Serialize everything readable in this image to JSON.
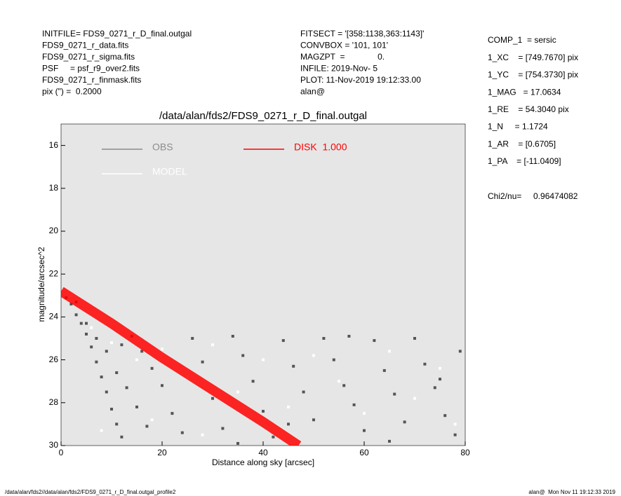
{
  "chart_data": {
    "type": "scatter",
    "title": "/data/alan/fds2/FDS9_0271_r_D_final.outgal",
    "xlabel": "Distance along sky [arcsec]",
    "ylabel": "magnitude/arcsec^2",
    "xlim": [
      0,
      80
    ],
    "ylim": [
      30,
      15
    ],
    "xticks": [
      0,
      20,
      40,
      60,
      80
    ],
    "yticks": [
      16,
      18,
      20,
      22,
      24,
      26,
      28,
      30
    ],
    "legend": "upper left",
    "background": "#e6e6e6",
    "series": [
      {
        "name": "OBS",
        "color": "#555555",
        "label_color": "#8c8c8c",
        "mode": "points",
        "x": [
          1,
          2,
          3,
          4,
          5,
          6,
          7,
          8,
          9,
          10,
          11,
          12,
          3,
          5,
          7,
          9,
          11,
          13,
          15,
          17,
          12,
          14,
          16,
          18,
          20,
          22,
          24,
          26,
          28,
          30,
          32,
          34,
          36,
          38,
          40,
          42,
          44,
          46,
          48,
          50,
          52,
          54,
          56,
          58,
          60,
          62,
          64,
          66,
          68,
          70,
          72,
          74,
          76,
          78,
          79,
          57,
          65,
          35,
          45,
          75
        ],
        "values": [
          23.1,
          23.4,
          23.9,
          24.3,
          24.8,
          25.4,
          26.1,
          26.8,
          27.5,
          28.3,
          29.0,
          29.6,
          23.3,
          24.3,
          25.0,
          25.6,
          26.6,
          27.3,
          28.2,
          29.1,
          25.3,
          24.9,
          25.6,
          26.4,
          27.2,
          28.5,
          29.4,
          25.0,
          26.1,
          27.8,
          29.2,
          24.9,
          25.8,
          27.0,
          28.4,
          29.6,
          25.1,
          26.3,
          27.5,
          28.8,
          25.0,
          26.0,
          27.2,
          28.1,
          29.3,
          25.1,
          26.5,
          27.6,
          28.9,
          25.0,
          26.2,
          27.3,
          28.6,
          29.5,
          25.6,
          24.9,
          29.8,
          29.9,
          29.0,
          26.9
        ]
      },
      {
        "name": "MODEL",
        "color": "#ffffff",
        "label_color": "#ffffff",
        "mode": "points",
        "x": [
          2,
          6,
          10,
          15,
          20,
          25,
          30,
          35,
          40,
          45,
          50,
          55,
          60,
          65,
          70,
          75,
          78,
          18,
          28,
          8
        ],
        "values": [
          23.0,
          24.5,
          25.2,
          26.0,
          25.5,
          26.8,
          25.3,
          27.5,
          26.0,
          28.2,
          25.8,
          27.0,
          28.5,
          25.6,
          27.8,
          26.4,
          29.0,
          28.8,
          29.5,
          29.3
        ]
      },
      {
        "name": "DISK  1.000",
        "color": "#ff0000",
        "label_color": "#ff0000",
        "mode": "line",
        "x": [
          0,
          10,
          20,
          30,
          40,
          47
        ],
        "values": [
          22.8,
          24.3,
          25.9,
          27.4,
          28.9,
          30
        ]
      }
    ],
    "annotations": {
      "left": [
        "INITFILE= FDS9_0271_r_D_final.outgal",
        "FDS9_0271_r_data.fits",
        "FDS9_0271_r_sigma.fits",
        "PSF     = psf_r9_over2.fits",
        "FDS9_0271_r_finmask.fits",
        "pix (\") =  0.2000"
      ],
      "middle": [
        "FITSECT = '[358:1138,363:1143]'",
        "CONVBOX = '101, 101'",
        "MAGZPT  =              0.",
        "INFILE: 2019-Nov- 5",
        "PLOT: 11-Nov-2019 19:12:33.00",
        "alan@"
      ],
      "right": [
        "COMP_1  = sersic",
        "1_XC    = [749.7670] pix",
        "1_YC    = [754.3730] pix",
        "1_MAG   = 17.0634",
        "1_RE    = 54.3040 pix",
        "1_N     = 1.1724",
        "1_AR    = [0.6705]",
        "1_PA    = [-11.0409]"
      ],
      "chi": "Chi2/nu=     0.96474082",
      "footer_left": "/data/alan/fds2//data/alan/fds2/FDS9_0271_r_D_final.outgal_profile2",
      "footer_right": "alan@  Mon Nov 11 19:12:33 2019"
    }
  }
}
